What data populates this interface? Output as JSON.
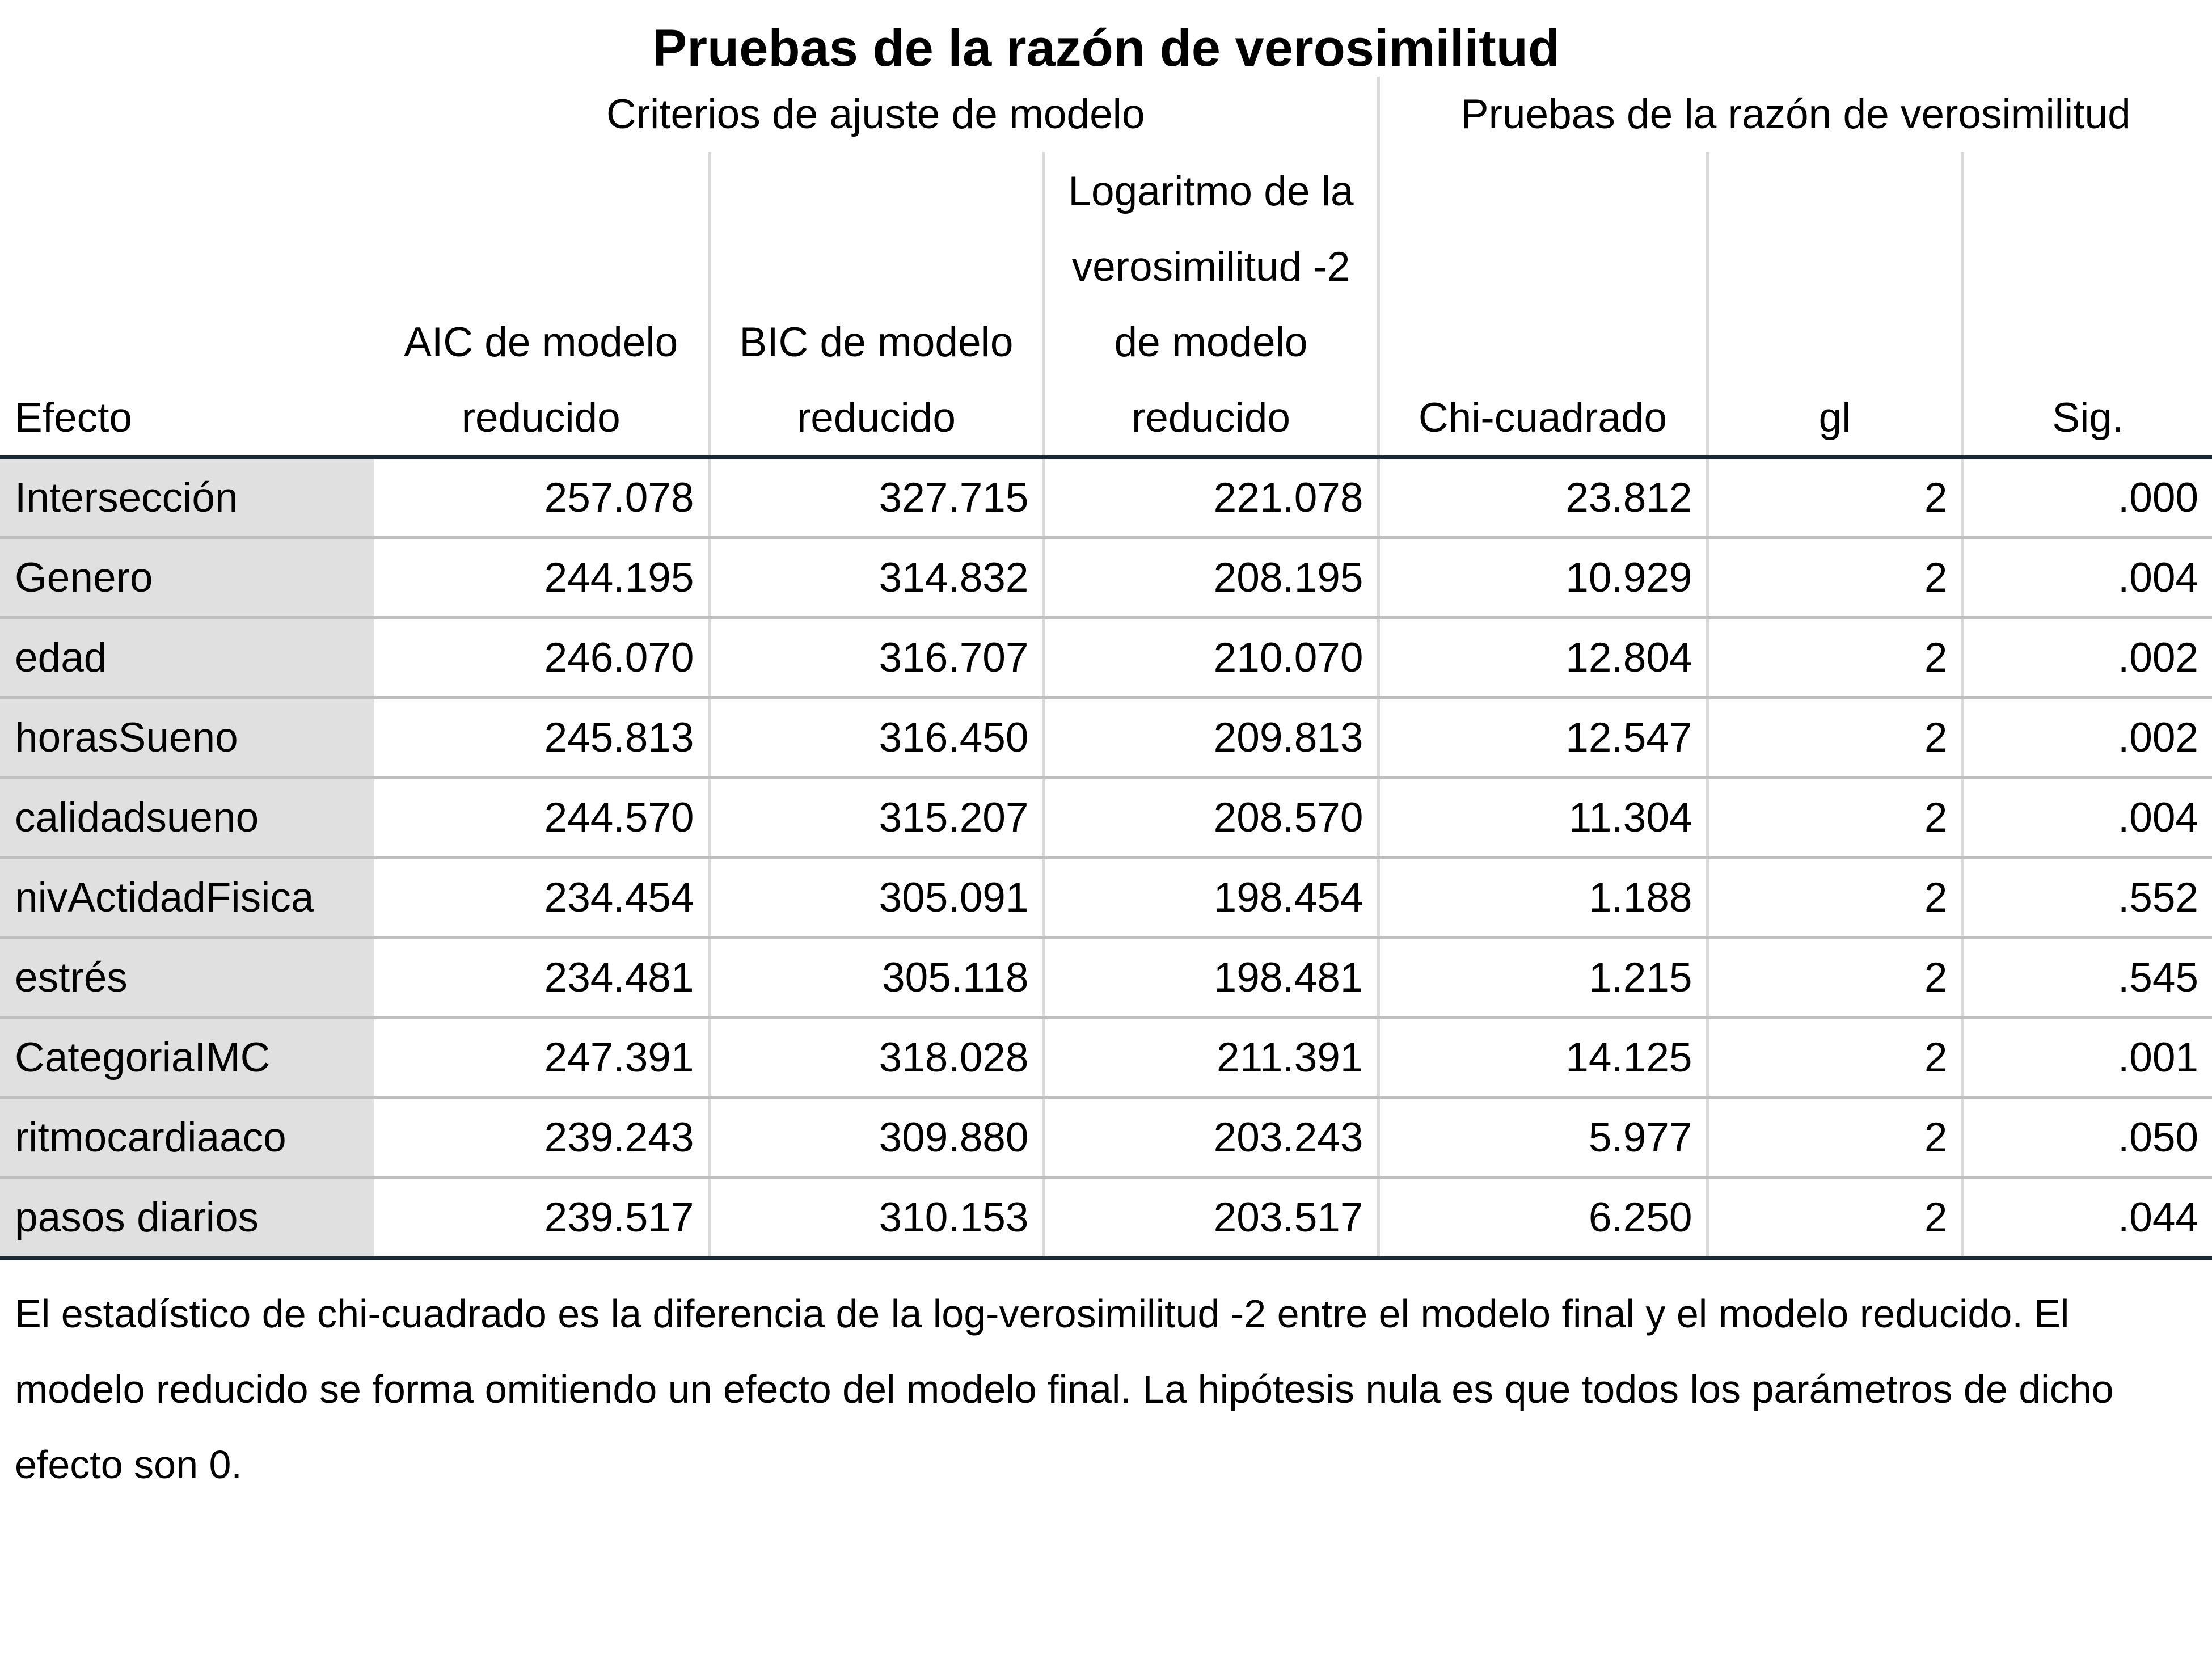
{
  "title": "Pruebas de la razón de verosimilitud",
  "groups": {
    "fit_criteria": "Criterios de ajuste de modelo",
    "lr_tests": "Pruebas de la razón de verosimilitud"
  },
  "columns": {
    "effect": "Efecto",
    "aic": [
      "AIC de modelo",
      "reducido"
    ],
    "bic": [
      "BIC de modelo",
      "reducido"
    ],
    "loglik": [
      "Logaritmo de la",
      "verosimilitud -2",
      "de modelo",
      "reducido"
    ],
    "chi": "Chi-cuadrado",
    "gl": "gl",
    "sig": "Sig."
  },
  "rows": [
    {
      "effect": "Intersección",
      "aic": "257.078",
      "bic": "327.715",
      "loglik": "221.078",
      "chi": "23.812",
      "gl": "2",
      "sig": ".000"
    },
    {
      "effect": "Genero",
      "aic": "244.195",
      "bic": "314.832",
      "loglik": "208.195",
      "chi": "10.929",
      "gl": "2",
      "sig": ".004"
    },
    {
      "effect": "edad",
      "aic": "246.070",
      "bic": "316.707",
      "loglik": "210.070",
      "chi": "12.804",
      "gl": "2",
      "sig": ".002"
    },
    {
      "effect": "horasSueno",
      "aic": "245.813",
      "bic": "316.450",
      "loglik": "209.813",
      "chi": "12.547",
      "gl": "2",
      "sig": ".002"
    },
    {
      "effect": "calidadsueno",
      "aic": "244.570",
      "bic": "315.207",
      "loglik": "208.570",
      "chi": "11.304",
      "gl": "2",
      "sig": ".004"
    },
    {
      "effect": "nivActidadFisica",
      "aic": "234.454",
      "bic": "305.091",
      "loglik": "198.454",
      "chi": "1.188",
      "gl": "2",
      "sig": ".552"
    },
    {
      "effect": "estrés",
      "aic": "234.481",
      "bic": "305.118",
      "loglik": "198.481",
      "chi": "1.215",
      "gl": "2",
      "sig": ".545"
    },
    {
      "effect": "CategoriaIMC",
      "aic": "247.391",
      "bic": "318.028",
      "loglik": "211.391",
      "chi": "14.125",
      "gl": "2",
      "sig": ".001"
    },
    {
      "effect": "ritmocardiaaco",
      "aic": "239.243",
      "bic": "309.880",
      "loglik": "203.243",
      "chi": "5.977",
      "gl": "2",
      "sig": ".050"
    },
    {
      "effect": "pasos diarios",
      "aic": "239.517",
      "bic": "310.153",
      "loglik": "203.517",
      "chi": "6.250",
      "gl": "2",
      "sig": ".044"
    }
  ],
  "footnote": "El estadístico de chi-cuadrado es la diferencia de la log-verosimilitud -2 entre el modelo final y el modelo reducido. El modelo reducido se forma omitiendo un efecto del modelo final. La hipótesis nula es que todos los parámetros de dicho efecto son 0."
}
